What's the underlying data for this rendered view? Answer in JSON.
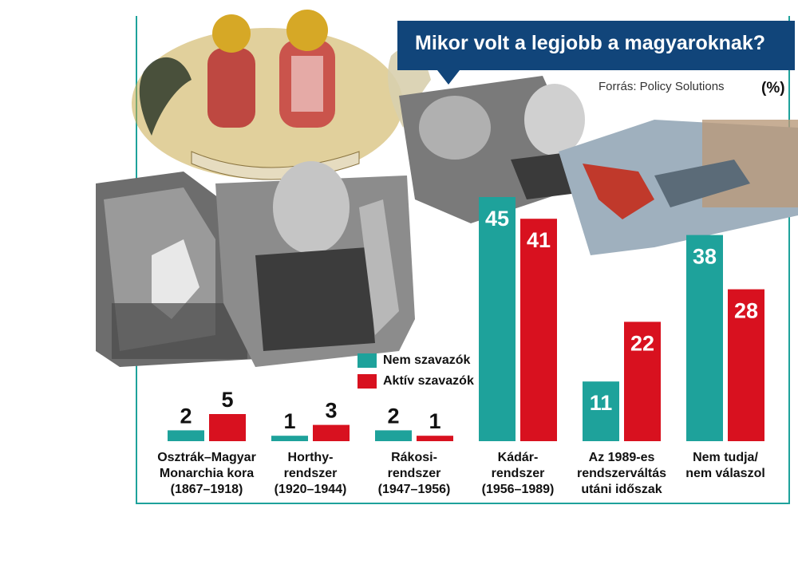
{
  "title": "Mikor volt a legjobb a magyaroknak?",
  "source": "Forrás: Policy Solutions",
  "unit": "(%)",
  "colors": {
    "nem": "#1ea29b",
    "aktiv": "#d8111f",
    "title_bg": "#11457a"
  },
  "chart_data": {
    "type": "bar",
    "categories": [
      "Osztrák–Magyar Monarchia kora (1867–1918)",
      "Horthy-rendszer (1920–1944)",
      "Rákosi-rendszer (1947–1956)",
      "Kádár-rendszer (1956–1989)",
      "Az 1989-es rendszerváltás utáni időszak",
      "Nem tudja/ nem válaszol"
    ],
    "category_lines": [
      [
        "Osztrák–Magyar",
        "Monarchia kora",
        "(1867–1918)"
      ],
      [
        "Horthy-",
        "rendszer",
        "(1920–1944)"
      ],
      [
        "Rákosi-",
        "rendszer",
        "(1947–1956)"
      ],
      [
        "Kádár-",
        "rendszer",
        "(1956–1989)"
      ],
      [
        "Az 1989-es",
        "rendszerváltás",
        "utáni időszak"
      ],
      [
        "Nem tudja/",
        "nem válaszol"
      ]
    ],
    "series": [
      {
        "name": "Nem szavazók",
        "values": [
          2,
          1,
          2,
          45,
          11,
          38
        ]
      },
      {
        "name": "Aktív szavazók",
        "values": [
          5,
          3,
          1,
          41,
          22,
          28
        ]
      }
    ],
    "ylim": [
      0,
      45
    ],
    "legend": "center"
  }
}
